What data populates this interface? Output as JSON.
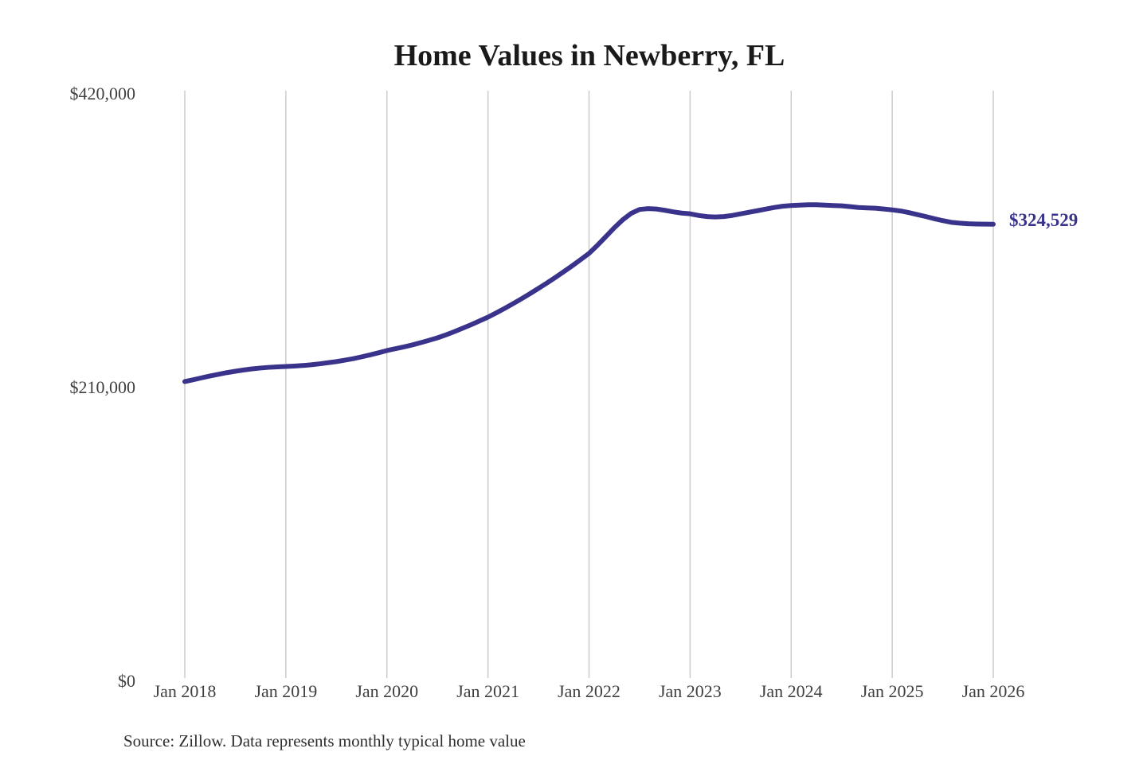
{
  "page": {
    "background": "#ffffff"
  },
  "chart_data": {
    "type": "line",
    "title": "Home Values in Newberry, FL",
    "source_note": "Source: Zillow. Data represents monthly typical home value",
    "end_label": "$324,529",
    "end_value": 324529,
    "frequency": "monthly",
    "x_start": "Jan 2018",
    "x_end": "Jan 2026",
    "x_tick_labels": [
      "Jan 2018",
      "Jan 2019",
      "Jan 2020",
      "Jan 2021",
      "Jan 2022",
      "Jan 2023",
      "Jan 2024",
      "Jan 2025",
      "Jan 2026"
    ],
    "y_ticks": [
      {
        "value": 0,
        "label": "$0"
      },
      {
        "value": 210000,
        "label": "$210,000"
      },
      {
        "value": 420000,
        "label": "$420,000"
      }
    ],
    "ylim": [
      0,
      420000
    ],
    "grid": "vertical-only",
    "legend": "none",
    "colors": {
      "line": "#3a338c",
      "end_label": "#3a338c",
      "grid": "#cccccc",
      "axis_text": "#3f3f3f",
      "title_text": "#1a1a1a",
      "source_text": "#2e2e2e",
      "background": "#ffffff"
    },
    "series": [
      {
        "name": "Monthly typical home value",
        "values": [
          212000,
          213300,
          214700,
          216000,
          217200,
          218400,
          219400,
          220300,
          221100,
          221700,
          222200,
          222500,
          222800,
          223100,
          223500,
          224000,
          224700,
          225500,
          226300,
          227300,
          228400,
          229700,
          231100,
          232600,
          234200,
          235500,
          236800,
          238200,
          239800,
          241500,
          243300,
          245400,
          247700,
          250200,
          252700,
          255400,
          258100,
          261200,
          264400,
          267800,
          271300,
          274900,
          278700,
          282500,
          286500,
          290600,
          294800,
          299200,
          303700,
          309500,
          315700,
          322000,
          327700,
          332300,
          335100,
          335700,
          335400,
          334500,
          333400,
          332500,
          332000,
          330800,
          330000,
          329700,
          330000,
          330800,
          332000,
          333100,
          334200,
          335400,
          336500,
          337400,
          337900,
          338200,
          338500,
          338500,
          338200,
          337900,
          337700,
          337100,
          336500,
          336200,
          336000,
          335400,
          334800,
          334000,
          332800,
          331400,
          330000,
          328500,
          327100,
          325900,
          325300,
          324900,
          324700,
          324600,
          324529
        ]
      }
    ]
  }
}
